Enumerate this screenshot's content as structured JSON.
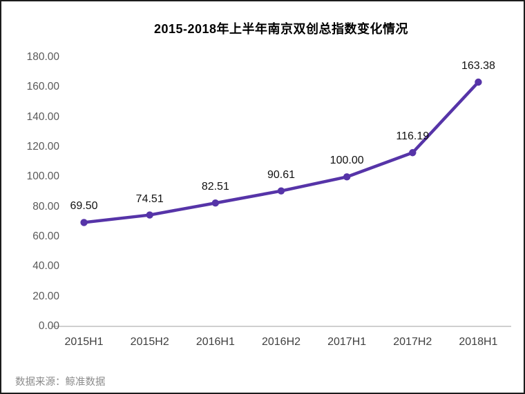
{
  "chart_data": {
    "type": "line",
    "title": "2015-2018年上半年南京双创总指数变化情况",
    "categories": [
      "2015H1",
      "2015H2",
      "2016H1",
      "2016H2",
      "2017H1",
      "2017H2",
      "2018H1"
    ],
    "values": [
      69.5,
      74.51,
      82.51,
      90.61,
      100.0,
      116.19,
      163.38
    ],
    "value_labels": [
      "69.50",
      "74.51",
      "82.51",
      "90.61",
      "100.00",
      "116.19",
      "163.38"
    ],
    "y_ticks": [
      "180.00",
      "160.00",
      "140.00",
      "120.00",
      "100.00",
      "80.00",
      "60.00",
      "40.00",
      "20.00",
      "0.00"
    ],
    "ylim": [
      0,
      180
    ],
    "xlabel": "",
    "ylabel": "",
    "grid": false,
    "legend": "none",
    "line_color": "#5634a8",
    "marker_color": "#5634a8",
    "axis_line_color": "#bfbfbf",
    "tick_label_color": "#595959",
    "data_label_color": "#111111"
  },
  "footer": {
    "source_note": "数据来源：鲸准数据"
  }
}
